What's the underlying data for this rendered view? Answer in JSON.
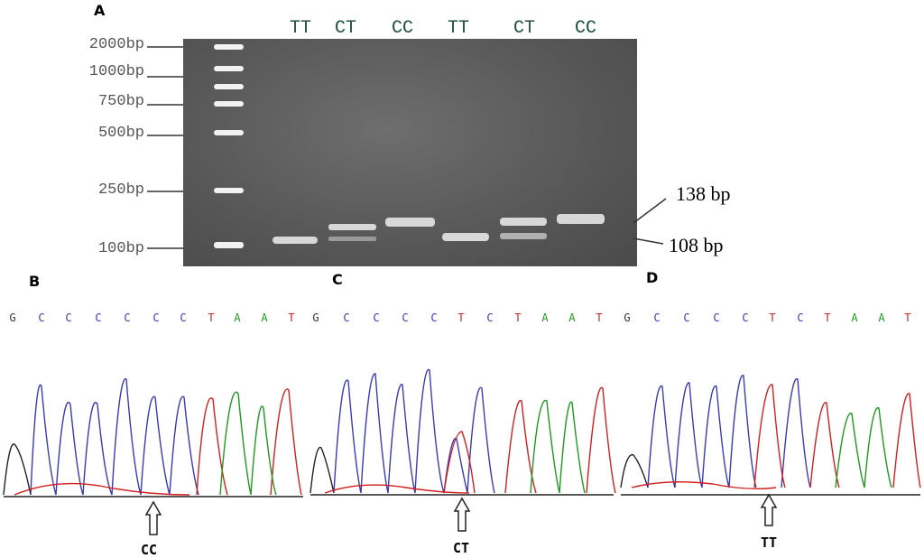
{
  "panel_a": {
    "letter": "A",
    "ladder_labels": [
      "2000bp",
      "1000bp",
      "750bp",
      "500bp",
      "250bp",
      "100bp"
    ],
    "lane_labels": [
      "TT",
      "CT",
      "CC",
      "TT",
      "CT",
      "CC"
    ],
    "band_labels": [
      "138 bp",
      "108 bp"
    ]
  },
  "panel_b": {
    "letter": "B",
    "bases": [
      "G",
      "C",
      "C",
      "C",
      "C",
      "C",
      "C",
      "T",
      "A",
      "A",
      "T"
    ],
    "genotype": "CC"
  },
  "panel_c": {
    "letter": "C",
    "bases": [
      "G",
      "C",
      "C",
      "C",
      "C",
      "T",
      "C",
      "T",
      "A",
      "A",
      "T"
    ],
    "genotype": "CT"
  },
  "panel_d": {
    "letter": "D",
    "bases": [
      "G",
      "C",
      "C",
      "C",
      "C",
      "T",
      "C",
      "T",
      "A",
      "A",
      "T"
    ],
    "genotype": "TT"
  },
  "colors": {
    "G": "#333333",
    "C": "#3a3ab8",
    "T": "#d02020",
    "A": "#1f9a1f"
  }
}
